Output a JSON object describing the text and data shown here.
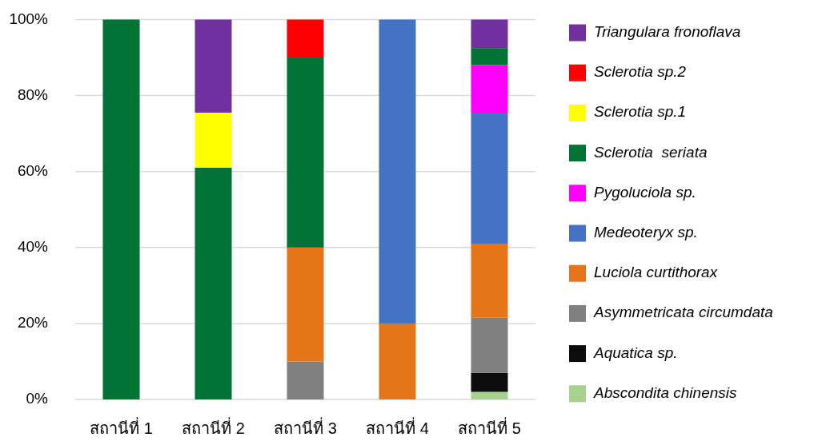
{
  "chart_data": {
    "type": "bar",
    "stacked": true,
    "categories": [
      "สถานีที่ 1",
      "สถานีที่ 2",
      "สถานีที่ 3",
      "สถานีที่ 4",
      "สถานีที่ 5"
    ],
    "series": [
      {
        "name": "Abscondita chinensis",
        "color": "#a9d18e",
        "values": [
          0,
          0,
          0,
          0,
          2
        ]
      },
      {
        "name": "Aquatica sp.",
        "color": "#0d0d0d",
        "values": [
          0,
          0,
          0,
          0,
          5
        ]
      },
      {
        "name": "Asymmetricata circumdata",
        "color": "#808080",
        "values": [
          0,
          0,
          10,
          0,
          14.5
        ]
      },
      {
        "name": "Luciola curtithorax",
        "color": "#e67519",
        "values": [
          0,
          0,
          30,
          20,
          19.5
        ]
      },
      {
        "name": "Medeoteryx sp.",
        "color": "#4472c4",
        "values": [
          0,
          0,
          0,
          80,
          34.5
        ]
      },
      {
        "name": "Pygoluciola sp.",
        "color": "#ff00ff",
        "values": [
          0,
          0,
          0,
          0,
          12.5
        ]
      },
      {
        "name": "Sclerotia  seriata",
        "color": "#007335",
        "values": [
          100,
          61,
          50,
          0,
          4.5
        ]
      },
      {
        "name": "Sclerotia sp.1",
        "color": "#ffff00",
        "values": [
          0,
          14.5,
          0,
          0,
          0
        ]
      },
      {
        "name": "Sclerotia sp.2",
        "color": "#ff0000",
        "values": [
          0,
          0,
          10,
          0,
          0
        ]
      },
      {
        "name": "Triangulara fronoflava",
        "color": "#7030a0",
        "values": [
          0,
          24.5,
          0,
          0,
          7.5
        ]
      }
    ],
    "ylim": [
      0,
      100
    ],
    "yticks": [
      {
        "value": 0,
        "label": "0%"
      },
      {
        "value": 20,
        "label": "20%"
      },
      {
        "value": 40,
        "label": "40%"
      },
      {
        "value": 60,
        "label": "60%"
      },
      {
        "value": 80,
        "label": "80%"
      },
      {
        "value": 100,
        "label": "100%"
      }
    ],
    "grid": "y",
    "legend": "right"
  }
}
